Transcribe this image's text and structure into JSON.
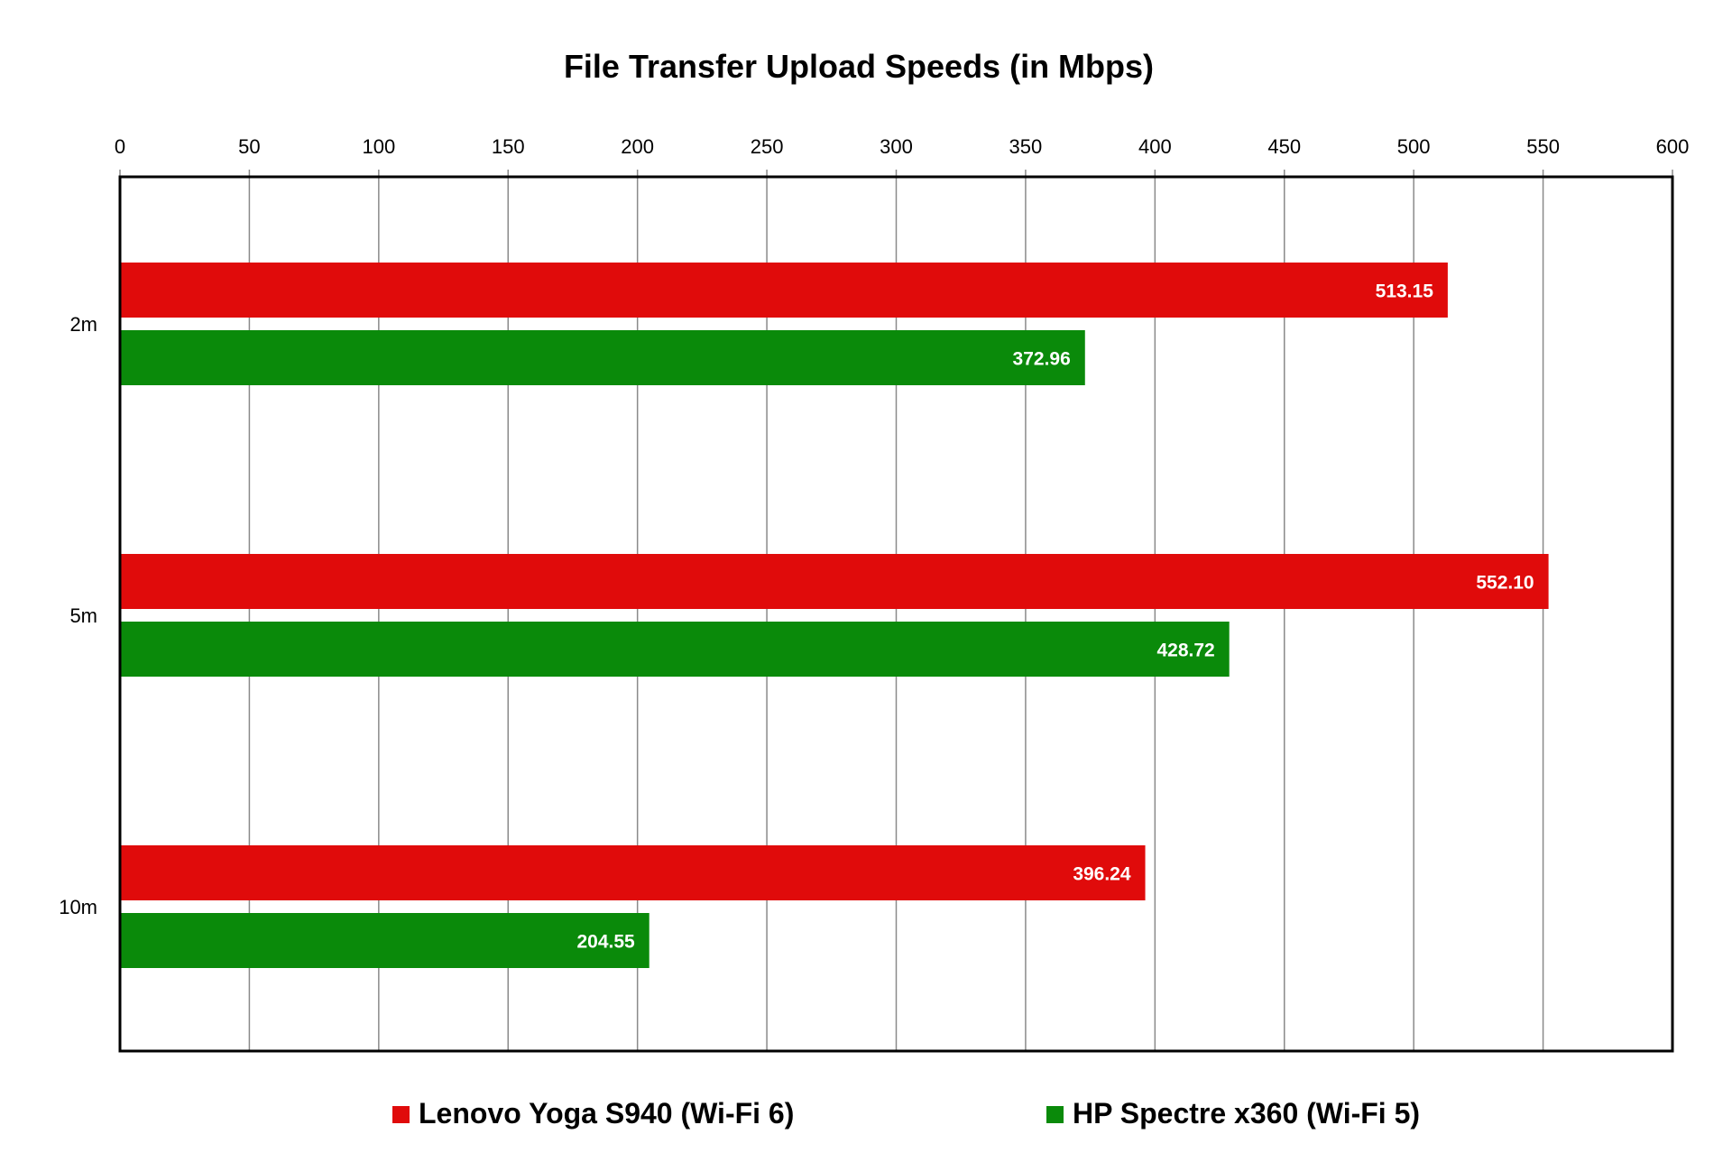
{
  "chart_data": {
    "type": "bar",
    "orientation": "horizontal",
    "title": "File Transfer Upload Speeds (in Mbps)",
    "xlabel": "",
    "ylabel": "",
    "xlim": [
      0,
      600
    ],
    "x_ticks": [
      0,
      50,
      100,
      150,
      200,
      250,
      300,
      350,
      400,
      450,
      500,
      550,
      600
    ],
    "x_axis_position": "top",
    "grid": "vertical",
    "categories": [
      "2m",
      "5m",
      "10m"
    ],
    "series": [
      {
        "name": "Lenovo Yoga S940 (Wi-Fi 6)",
        "color": "#E00B0B",
        "values": [
          513.15,
          552.1,
          396.24
        ],
        "labels": [
          "513.15",
          "552.10",
          "396.24"
        ]
      },
      {
        "name": "HP Spectre x360 (Wi-Fi 5)",
        "color": "#0A8A0A",
        "values": [
          372.96,
          428.72,
          204.55
        ],
        "labels": [
          "372.96",
          "428.72",
          "204.55"
        ]
      }
    ],
    "legend": "bottom"
  }
}
